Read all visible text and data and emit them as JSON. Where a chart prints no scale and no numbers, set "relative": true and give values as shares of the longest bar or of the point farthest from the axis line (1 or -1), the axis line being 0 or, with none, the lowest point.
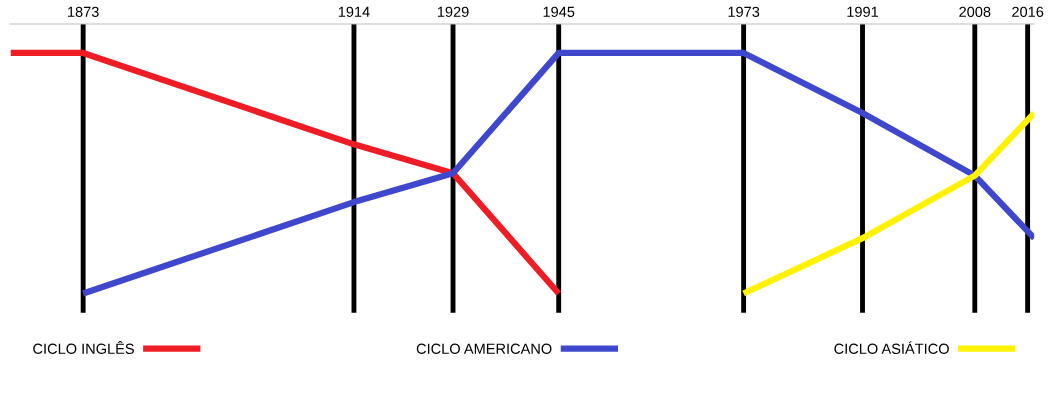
{
  "chart_data": {
    "type": "line",
    "relative": true,
    "series": [
      {
        "name": "CICLO INGLÊS",
        "color": "#ee1c25",
        "x": [
          1862,
          1873,
          1914,
          1929,
          1945
        ],
        "values": [
          1,
          1,
          0.62,
          0.5,
          0
        ]
      },
      {
        "name": "CICLO AMERICANO",
        "color": "#3f48cc",
        "x": [
          1873,
          1914,
          1929,
          1945,
          1973,
          1991,
          2008,
          2017
        ],
        "values": [
          0,
          0.38,
          0.5,
          1,
          1,
          0.75,
          0.49,
          0.23
        ]
      },
      {
        "name": "CICLO ASIÁTICO",
        "color": "#fff200",
        "x": [
          1973,
          1991,
          2008,
          2017
        ],
        "values": [
          0,
          0.23,
          0.49,
          0.75
        ]
      }
    ],
    "xlim": [
      1862,
      2017
    ],
    "xticks": [
      1873,
      1914,
      1929,
      1945,
      1973,
      1991,
      2008,
      2016
    ],
    "legend": "bottom",
    "grid": "x",
    "marker": "none",
    "line_style": "solid",
    "tick_labels": "x"
  }
}
